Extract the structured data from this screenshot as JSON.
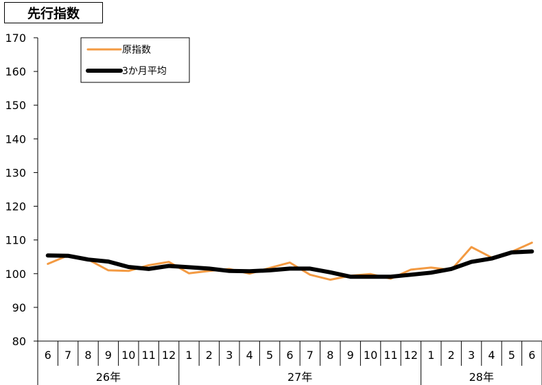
{
  "chart_data": {
    "type": "line",
    "title": "先行指数",
    "ylim": [
      80,
      170
    ],
    "yticks": [
      80,
      90,
      100,
      110,
      120,
      130,
      140,
      150,
      160,
      170
    ],
    "categories": [
      "6",
      "7",
      "8",
      "9",
      "10",
      "11",
      "12",
      "1",
      "2",
      "3",
      "4",
      "5",
      "6",
      "7",
      "8",
      "9",
      "10",
      "11",
      "12",
      "1",
      "2",
      "3",
      "4",
      "5",
      "6"
    ],
    "year_groups": [
      {
        "label": "26年",
        "count": 7
      },
      {
        "label": "27年",
        "count": 12
      },
      {
        "label": "28年",
        "count": 6
      }
    ],
    "legend_placement": "top-left",
    "series": [
      {
        "name": "原指数",
        "color": "#f39a42",
        "values": [
          102.9,
          105.4,
          104.2,
          101.0,
          100.8,
          102.5,
          103.5,
          100.1,
          100.8,
          101.4,
          100.0,
          101.7,
          103.3,
          99.7,
          98.2,
          99.4,
          99.9,
          98.5,
          101.2,
          101.8,
          101.1,
          107.9,
          104.8,
          106.5,
          109.2
        ]
      },
      {
        "name": "3か月平均",
        "color": "#000000",
        "values": [
          105.4,
          105.3,
          104.2,
          103.6,
          102.0,
          101.4,
          102.3,
          101.9,
          101.5,
          100.8,
          100.7,
          101.0,
          101.5,
          101.5,
          100.4,
          99.1,
          99.1,
          99.1,
          99.7,
          100.3,
          101.4,
          103.5,
          104.5,
          106.3,
          106.6
        ]
      }
    ]
  }
}
